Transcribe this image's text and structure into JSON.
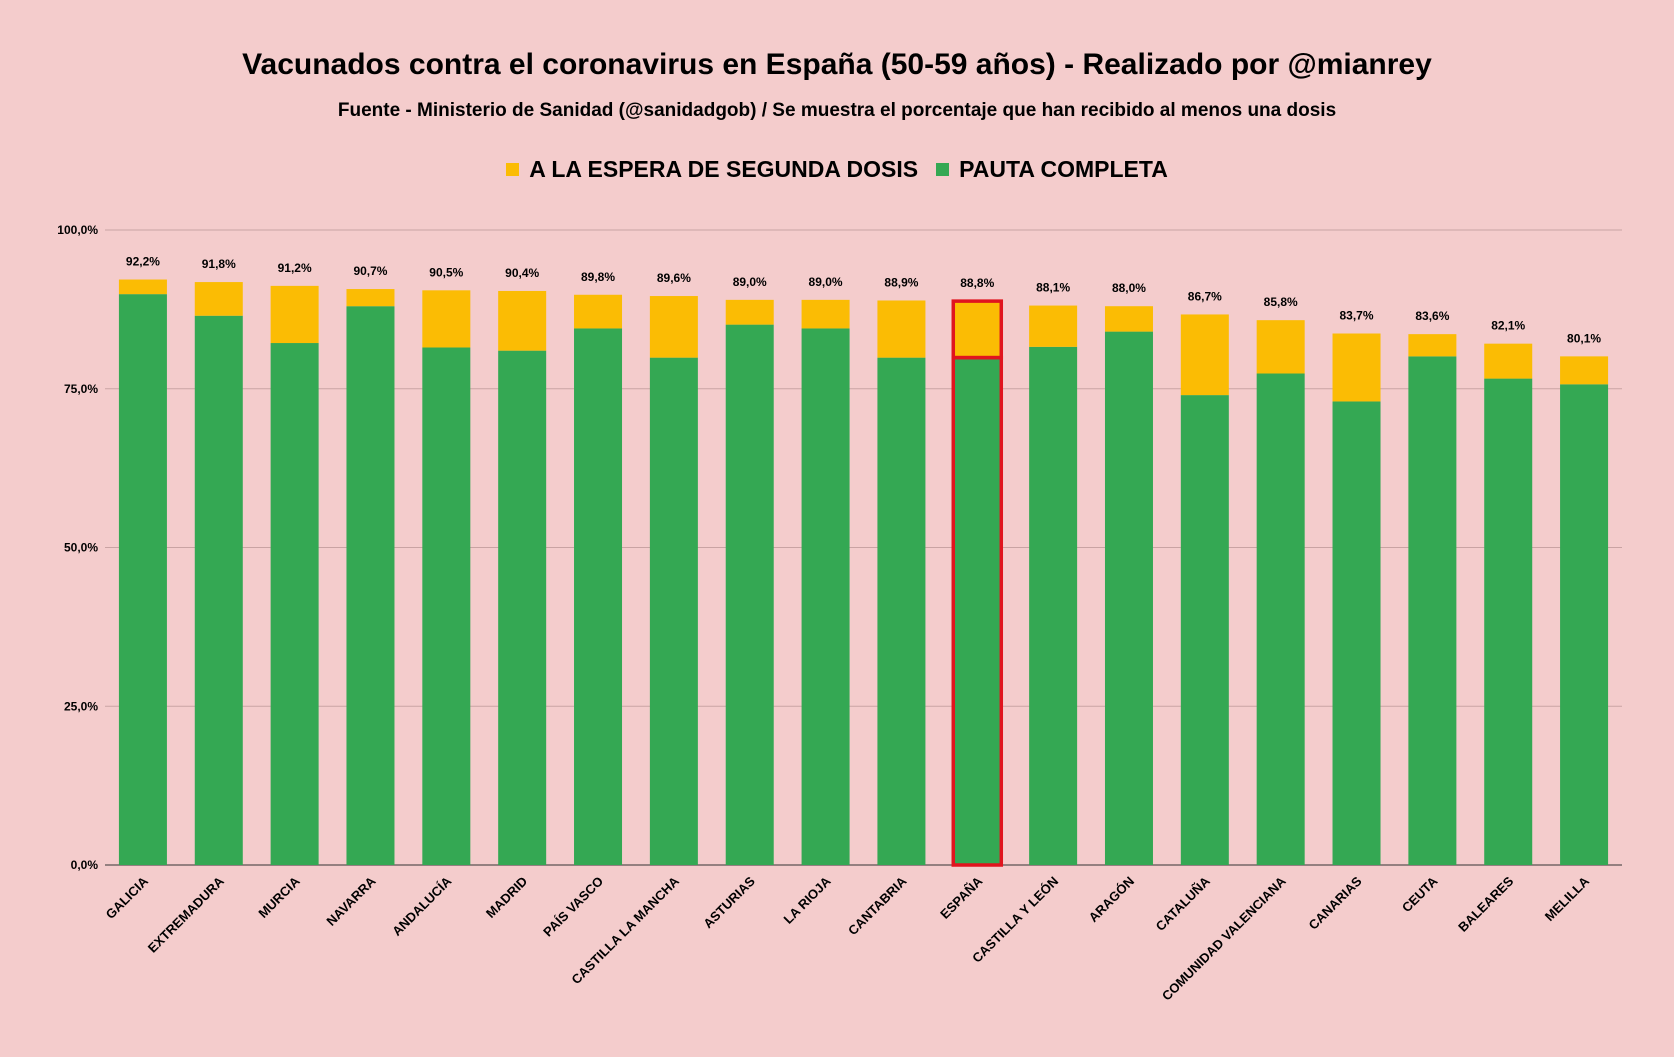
{
  "chart_data": {
    "type": "bar",
    "stacked": true,
    "title": "Vacunados contra el coronavirus en España (50-59 años) - Realizado por @mianrey",
    "subtitle": "Fuente - Ministerio de Sanidad (@sanidadgob) / Se muestra el porcentaje que han recibido al menos una dosis",
    "xlabel": "",
    "ylabel": "",
    "ylim": [
      0,
      100
    ],
    "yticks": [
      0,
      25,
      50,
      75,
      100
    ],
    "ytick_labels": [
      "0,0%",
      "25,0%",
      "50,0%",
      "75,0%",
      "100,0%"
    ],
    "grid": true,
    "legend_position": "top",
    "highlight_category": "ESPAÑA",
    "highlight_color": "#e0141e",
    "categories": [
      "GALICIA",
      "EXTREMADURA",
      "MURCIA",
      "NAVARRA",
      "ANDALUCÍA",
      "MADRID",
      "PAÍS VASCO",
      "CASTILLA LA MANCHA",
      "ASTURIAS",
      "LA RIOJA",
      "CANTABRIA",
      "ESPAÑA",
      "CASTILLA Y LEÓN",
      "ARAGÓN",
      "CATALUÑA",
      "COMUNIDAD VALENCIANA",
      "CANARIAS",
      "CEUTA",
      "BALEARES",
      "MELILLA"
    ],
    "series": [
      {
        "name": "PAUTA COMPLETA",
        "color": "#34a853",
        "values": [
          89.9,
          86.5,
          82.2,
          88.0,
          81.5,
          81.0,
          84.5,
          79.9,
          85.1,
          84.5,
          79.9,
          79.9,
          81.6,
          84.0,
          74.0,
          77.4,
          73.0,
          80.1,
          76.6,
          75.7
        ]
      },
      {
        "name": "A LA ESPERA DE SEGUNDA DOSIS",
        "color": "#fbbc04",
        "values": [
          2.3,
          5.3,
          9.0,
          2.7,
          9.0,
          9.4,
          5.3,
          9.7,
          3.9,
          4.5,
          9.0,
          8.9,
          6.5,
          4.0,
          12.7,
          8.4,
          10.7,
          3.5,
          5.5,
          4.4
        ]
      }
    ],
    "totals": [
      92.2,
      91.8,
      91.2,
      90.7,
      90.5,
      90.4,
      89.8,
      89.6,
      89.0,
      89.0,
      88.9,
      88.8,
      88.1,
      88.0,
      86.7,
      85.8,
      83.7,
      83.6,
      82.1,
      80.1
    ],
    "total_labels": [
      "92,2%",
      "91,8%",
      "91,2%",
      "90,7%",
      "90,5%",
      "90,4%",
      "89,8%",
      "89,6%",
      "89,0%",
      "89,0%",
      "88,9%",
      "88,8%",
      "88,1%",
      "88,0%",
      "86,7%",
      "85,8%",
      "83,7%",
      "83,6%",
      "82,1%",
      "80,1%"
    ]
  },
  "legend": {
    "items": [
      {
        "label": "A LA ESPERA DE SEGUNDA DOSIS",
        "color": "#fbbc04"
      },
      {
        "label": "PAUTA COMPLETA",
        "color": "#34a853"
      }
    ]
  }
}
